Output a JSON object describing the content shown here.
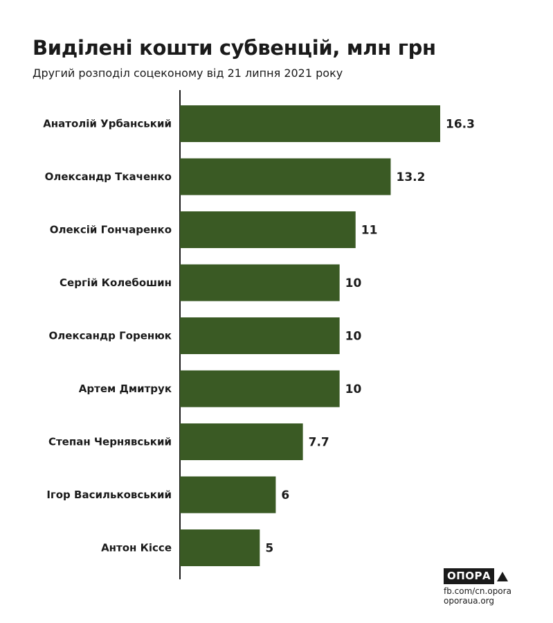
{
  "title": "Виділені кошти субвенцій, млн грн",
  "subtitle": "Другий розподіл соцеконому від 21 липня 2021 року",
  "chart_data": {
    "type": "bar",
    "orientation": "horizontal",
    "categories": [
      "Анатолій Урбанський",
      "Олександр Ткаченко",
      "Олексій Гончаренко",
      "Сергій Колебошин",
      "Олександр Горенюк",
      "Артем Дмитрук",
      "Степан Чернявський",
      "Ігор Васильковський",
      "Антон Кіссе"
    ],
    "values": [
      16.3,
      13.2,
      11,
      10,
      10,
      10,
      7.7,
      6,
      5
    ],
    "value_labels": [
      "16.3",
      "13.2",
      "11",
      "10",
      "10",
      "10",
      "7.7",
      "6",
      "5"
    ],
    "xlim": [
      0,
      16.3
    ],
    "grid": false,
    "legend": "none",
    "bar_color": "#3a5a24"
  },
  "branding": {
    "logo_text": "ОПОРА",
    "logo_icon": "triangle-icon",
    "link_1": "fb.com/cn.opora",
    "link_2": "oporaua.org"
  }
}
